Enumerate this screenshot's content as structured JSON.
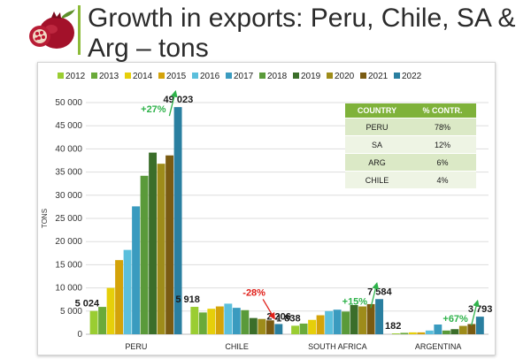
{
  "slide": {
    "title": "Growth in exports: Peru, Chile, SA & Arg – tons"
  },
  "table": {
    "headers": [
      "COUNTRY",
      "% CONTR."
    ],
    "rows": [
      [
        "PERU",
        "78%"
      ],
      [
        "SA",
        "12%"
      ],
      [
        "ARG",
        "6%"
      ],
      [
        "CHILE",
        "4%"
      ]
    ]
  },
  "chart_data": {
    "type": "bar",
    "categories": [
      "PERU",
      "CHILE",
      "SOUTH AFRICA",
      "ARGENTINA"
    ],
    "ylabel": "TONS",
    "ylim": [
      0,
      50000
    ],
    "yticks": [
      0,
      5000,
      10000,
      15000,
      20000,
      25000,
      30000,
      35000,
      40000,
      45000,
      50000
    ],
    "ytick_labels": [
      "0",
      "5 000",
      "10 000",
      "15 000",
      "20 000",
      "25 000",
      "30 000",
      "35 000",
      "40 000",
      "45 000",
      "50 000"
    ],
    "legend_position": "top",
    "grid": true,
    "series": [
      {
        "name": "2012",
        "color": "#9acd32",
        "values": [
          5024,
          5918,
          1838,
          182
        ]
      },
      {
        "name": "2013",
        "color": "#6aaa3a",
        "values": [
          5900,
          4700,
          2300,
          300
        ]
      },
      {
        "name": "2014",
        "color": "#e6cf0a",
        "values": [
          10000,
          5500,
          3100,
          400
        ]
      },
      {
        "name": "2015",
        "color": "#d4a30a",
        "values": [
          16000,
          6000,
          4100,
          400
        ]
      },
      {
        "name": "2016",
        "color": "#5bbfdc",
        "values": [
          18200,
          6600,
          5000,
          800
        ]
      },
      {
        "name": "2017",
        "color": "#3a9bbf",
        "values": [
          27600,
          5700,
          5300,
          2100
        ]
      },
      {
        "name": "2018",
        "color": "#5a9a3a",
        "values": [
          34200,
          5200,
          4900,
          800
        ]
      },
      {
        "name": "2019",
        "color": "#3b6e2a",
        "values": [
          39200,
          3500,
          6300,
          1100
        ]
      },
      {
        "name": "2020",
        "color": "#9e8c1a",
        "values": [
          36800,
          3300,
          6000,
          1800
        ]
      },
      {
        "name": "2021",
        "color": "#7a5b12",
        "values": [
          38600,
          3000,
          6500,
          2200
        ]
      },
      {
        "name": "2022",
        "color": "#2a7fa0",
        "values": [
          49023,
          2206,
          7584,
          3793
        ]
      }
    ],
    "data_labels": [
      {
        "category": "PERU",
        "series": "2012",
        "text": "5 024"
      },
      {
        "category": "PERU",
        "series": "2022",
        "text": "49 023"
      },
      {
        "category": "CHILE",
        "series": "2012",
        "text": "5 918"
      },
      {
        "category": "CHILE",
        "series": "2022",
        "text": "2 206"
      },
      {
        "category": "SOUTH AFRICA",
        "series": "2012",
        "text": "1 838"
      },
      {
        "category": "SOUTH AFRICA",
        "series": "2022",
        "text": "7 584"
      },
      {
        "category": "ARGENTINA",
        "series": "2012",
        "text": "182"
      },
      {
        "category": "ARGENTINA",
        "series": "2022",
        "text": "3 793"
      }
    ],
    "growth_annotations": [
      {
        "category": "PERU",
        "text": "+27%",
        "color": "#2eb24a"
      },
      {
        "category": "CHILE",
        "text": "-28%",
        "color": "#e0201a"
      },
      {
        "category": "SOUTH AFRICA",
        "text": "+15%",
        "color": "#2eb24a"
      },
      {
        "category": "ARGENTINA",
        "text": "+67%",
        "color": "#2eb24a"
      }
    ]
  }
}
